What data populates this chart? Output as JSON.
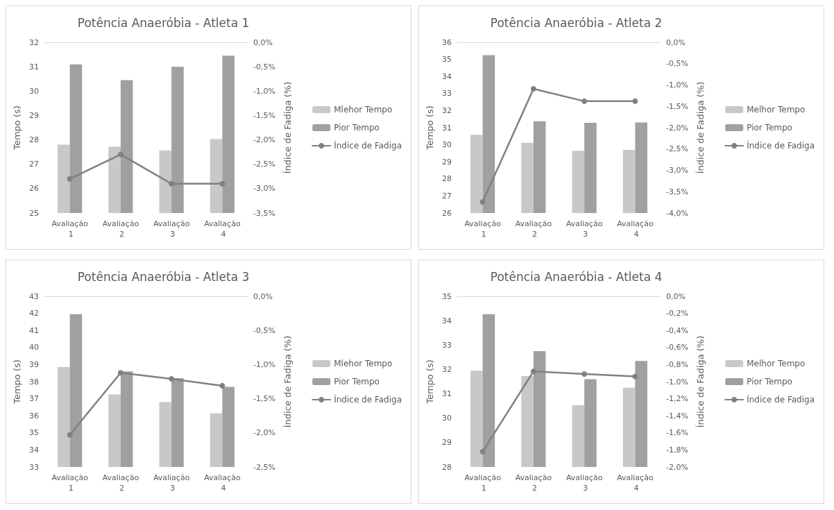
{
  "chart_data": [
    {
      "type": "bar",
      "title": "Potência Anaeróbia - Atleta 1",
      "ylabel": "Tempo (s)",
      "y2label": "Índice de Fadiga (%)",
      "categories": [
        "Avaliação 1",
        "Avaliação 2",
        "Avaliação 3",
        "Avaliação 4"
      ],
      "series": [
        {
          "name": "Mlehor Tempo",
          "color": "#c8c8c8",
          "values": [
            27.8,
            27.72,
            27.57,
            28.03
          ]
        },
        {
          "name": "Pior Tempo",
          "color": "#a0a0a0",
          "values": [
            31.1,
            30.45,
            31.0,
            31.45
          ]
        },
        {
          "name": "Índice de Fadiga",
          "type": "line",
          "axis": "y2",
          "color": "#808080",
          "marker": "circle",
          "line_style": "solid",
          "values": [
            -2.8,
            -2.3,
            -2.9,
            -2.9
          ]
        }
      ],
      "ylim": [
        25,
        32
      ],
      "yticks": [
        25,
        26,
        27,
        28,
        29,
        30,
        31,
        32
      ],
      "y2lim": [
        -3.5,
        0
      ],
      "y2ticks": [
        {
          "value": -3.5,
          "label": "-3,5%"
        },
        {
          "value": -3,
          "label": "-3,0%"
        },
        {
          "value": -2.5,
          "label": "-2,5%"
        },
        {
          "value": -2,
          "label": "-2,0%"
        },
        {
          "value": -1.5,
          "label": "-1,5%"
        },
        {
          "value": -1,
          "label": "-1,0%"
        },
        {
          "value": -0.5,
          "label": "-0,5%"
        },
        {
          "value": 0,
          "label": "0,0%"
        }
      ],
      "legend": "right",
      "grid": false
    },
    {
      "type": "bar",
      "title": "Potência Anaeróbia - Atleta 2",
      "ylabel": "Tempo (s)",
      "y2label": "Índice de Fadiga (%)",
      "categories": [
        "Avaliação 1",
        "Avaliação 2",
        "Avaliação 3",
        "Avaliação 4"
      ],
      "series": [
        {
          "name": "Melhor Tempo",
          "color": "#c8c8c8",
          "values": [
            30.58,
            30.12,
            29.65,
            29.7
          ]
        },
        {
          "name": "Pior Tempo",
          "color": "#a0a0a0",
          "values": [
            35.25,
            31.38,
            31.28,
            31.3
          ]
        },
        {
          "name": "Índice de Fadiga",
          "type": "line",
          "axis": "y2",
          "color": "#808080",
          "marker": "circle",
          "line_style": "solid",
          "values": [
            -3.74,
            -1.09,
            -1.38,
            -1.38
          ]
        }
      ],
      "ylim": [
        26,
        36
      ],
      "yticks": [
        26,
        27,
        28,
        29,
        30,
        31,
        32,
        33,
        34,
        35,
        36
      ],
      "y2lim": [
        -4,
        0
      ],
      "y2ticks": [
        {
          "value": -4,
          "label": "-4,0%"
        },
        {
          "value": -3.5,
          "label": "-3,5%"
        },
        {
          "value": -3,
          "label": "-3,0%"
        },
        {
          "value": -2.5,
          "label": "-2,5%"
        },
        {
          "value": -2,
          "label": "-2,0%"
        },
        {
          "value": -1.5,
          "label": "-1,5%"
        },
        {
          "value": -1,
          "label": "-1,0%"
        },
        {
          "value": -0.5,
          "label": "-0,5%"
        },
        {
          "value": 0,
          "label": "0,0%"
        }
      ],
      "legend": "right",
      "grid": false
    },
    {
      "type": "bar",
      "title": "Potência Anaeróbia - Atleta 3",
      "ylabel": "Tempo (s)",
      "y2label": "Índice de Fadiga (%)",
      "categories": [
        "Avaliação 1",
        "Avaliação 2",
        "Avaliação 3",
        "Avaliação 4"
      ],
      "series": [
        {
          "name": "Mlehor Tempo",
          "color": "#c8c8c8",
          "values": [
            38.85,
            37.25,
            36.8,
            36.15
          ]
        },
        {
          "name": "Pior Tempo",
          "color": "#a0a0a0",
          "values": [
            41.95,
            38.6,
            38.2,
            37.7
          ]
        },
        {
          "name": "Índice de Fadiga",
          "type": "line",
          "axis": "y2",
          "color": "#808080",
          "marker": "circle",
          "line_style": "solid",
          "values": [
            -2.03,
            -1.12,
            -1.21,
            -1.31
          ]
        }
      ],
      "ylim": [
        33,
        43
      ],
      "yticks": [
        33,
        34,
        35,
        36,
        37,
        38,
        39,
        40,
        41,
        42,
        43
      ],
      "y2lim": [
        -2.5,
        0
      ],
      "y2ticks": [
        {
          "value": -2.5,
          "label": "-2,5%"
        },
        {
          "value": -2,
          "label": "-2,0%"
        },
        {
          "value": -1.5,
          "label": "-1,5%"
        },
        {
          "value": -1,
          "label": "-1,0%"
        },
        {
          "value": -0.5,
          "label": "-0,5%"
        },
        {
          "value": 0,
          "label": "0,0%"
        }
      ],
      "legend": "right",
      "grid": false
    },
    {
      "type": "bar",
      "title": "Potência Anaeróbia - Atleta 4",
      "ylabel": "Tempo (s)",
      "y2label": "Índice de Fadiga (%)",
      "categories": [
        "Avaliação 1",
        "Avaliação 2",
        "Avaliação 3",
        "Avaliação 4"
      ],
      "series": [
        {
          "name": "Melhor Tempo",
          "color": "#c8c8c8",
          "values": [
            31.95,
            31.73,
            30.53,
            31.25
          ]
        },
        {
          "name": "Pior Tempo",
          "color": "#a0a0a0",
          "values": [
            34.27,
            32.75,
            31.6,
            32.35
          ]
        },
        {
          "name": "Índice de Fadiga",
          "type": "line",
          "axis": "y2",
          "color": "#808080",
          "marker": "circle",
          "line_style": "solid",
          "values": [
            -1.82,
            -0.88,
            -0.91,
            -0.94
          ]
        }
      ],
      "ylim": [
        28,
        35
      ],
      "yticks": [
        28,
        29,
        30,
        31,
        32,
        33,
        34,
        35
      ],
      "y2lim": [
        -2,
        0
      ],
      "y2ticks": [
        {
          "value": -2,
          "label": "-2,0%"
        },
        {
          "value": -1.8,
          "label": "-1,8%"
        },
        {
          "value": -1.6,
          "label": "-1,6%"
        },
        {
          "value": -1.4,
          "label": "-1,4%"
        },
        {
          "value": -1.2,
          "label": "-1,2%"
        },
        {
          "value": -1,
          "label": "-1,0%"
        },
        {
          "value": -0.8,
          "label": "-0,8%"
        },
        {
          "value": -0.6,
          "label": "-0,6%"
        },
        {
          "value": -0.4,
          "label": "-0,4%"
        },
        {
          "value": -0.2,
          "label": "-0,2%"
        },
        {
          "value": 0,
          "label": "0,0%"
        }
      ],
      "legend": "right",
      "grid": false
    }
  ]
}
